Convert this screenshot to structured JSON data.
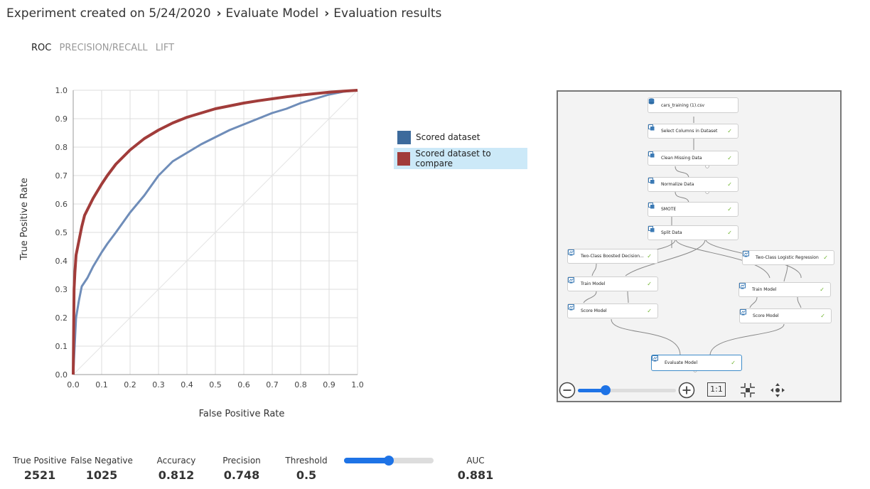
{
  "breadcrumb": {
    "items": [
      "Experiment created on 5/24/2020",
      "Evaluate Model",
      "Evaluation results"
    ],
    "separator": "›"
  },
  "tabs": [
    {
      "label": "ROC",
      "active": true
    },
    {
      "label": "PRECISION/RECALL",
      "active": false
    },
    {
      "label": "LIFT",
      "active": false
    }
  ],
  "chart_data": {
    "type": "line",
    "title": "",
    "xlabel": "False Positive Rate",
    "ylabel": "True Positive Rate",
    "xlim": [
      0,
      1
    ],
    "ylim": [
      0,
      1
    ],
    "xticks": [
      "0.0",
      "0.1",
      "0.2",
      "0.3",
      "0.4",
      "0.5",
      "0.6",
      "0.7",
      "0.8",
      "0.9",
      "1.0"
    ],
    "yticks": [
      "0.0",
      "0.1",
      "0.2",
      "0.3",
      "0.4",
      "0.5",
      "0.6",
      "0.7",
      "0.8",
      "0.9",
      "1.0"
    ],
    "grid": true,
    "diagonal_reference": true,
    "legend_position": "right",
    "series": [
      {
        "name": "Scored dataset",
        "color": "#6f8db9",
        "x": [
          0,
          0.005,
          0.01,
          0.02,
          0.03,
          0.05,
          0.07,
          0.1,
          0.12,
          0.15,
          0.2,
          0.25,
          0.3,
          0.35,
          0.4,
          0.45,
          0.5,
          0.55,
          0.6,
          0.65,
          0.7,
          0.75,
          0.8,
          0.85,
          0.9,
          0.95,
          1.0
        ],
        "y": [
          0,
          0.1,
          0.2,
          0.26,
          0.31,
          0.34,
          0.38,
          0.43,
          0.46,
          0.5,
          0.57,
          0.63,
          0.7,
          0.75,
          0.78,
          0.81,
          0.835,
          0.86,
          0.88,
          0.9,
          0.92,
          0.935,
          0.955,
          0.97,
          0.985,
          0.995,
          1.0
        ]
      },
      {
        "name": "Scored dataset to compare",
        "color": "#a13c3a",
        "x": [
          0,
          0.003,
          0.006,
          0.01,
          0.02,
          0.03,
          0.04,
          0.05,
          0.07,
          0.1,
          0.12,
          0.15,
          0.2,
          0.25,
          0.3,
          0.35,
          0.4,
          0.45,
          0.5,
          0.55,
          0.6,
          0.65,
          0.7,
          0.75,
          0.8,
          0.85,
          0.9,
          0.95,
          1.0
        ],
        "y": [
          0,
          0.3,
          0.36,
          0.42,
          0.47,
          0.52,
          0.56,
          0.58,
          0.62,
          0.67,
          0.7,
          0.74,
          0.79,
          0.83,
          0.86,
          0.885,
          0.905,
          0.92,
          0.935,
          0.945,
          0.955,
          0.963,
          0.97,
          0.977,
          0.983,
          0.988,
          0.993,
          0.997,
          1.0
        ]
      }
    ]
  },
  "legend": [
    {
      "label": "Scored dataset",
      "color": "#3c6a9c",
      "selected": false
    },
    {
      "label": "Scored dataset to compare",
      "color": "#a13c3a",
      "selected": true
    }
  ],
  "stats": {
    "true_positive": {
      "label": "True Positive",
      "value": "2521"
    },
    "false_negative": {
      "label": "False Negative",
      "value": "1025"
    },
    "accuracy": {
      "label": "Accuracy",
      "value": "0.812"
    },
    "precision": {
      "label": "Precision",
      "value": "0.748"
    },
    "threshold": {
      "label": "Threshold",
      "value": "0.5",
      "slider_fraction": 0.5
    },
    "auc": {
      "label": "AUC",
      "value": "0.881"
    }
  },
  "pipeline": {
    "modules": [
      {
        "id": "m1",
        "label": "cars_training (1).csv",
        "icon": "dataset-icon",
        "check": false
      },
      {
        "id": "m2",
        "label": "Select Columns in Dataset",
        "icon": "module-icon",
        "check": true
      },
      {
        "id": "m3",
        "label": "Clean Missing Data",
        "icon": "module-icon",
        "check": true
      },
      {
        "id": "m4",
        "label": "Normalize Data",
        "icon": "module-icon",
        "check": true
      },
      {
        "id": "m5",
        "label": "SMOTE",
        "icon": "module-icon",
        "check": true
      },
      {
        "id": "m6",
        "label": "Split Data",
        "icon": "module-icon",
        "check": true
      },
      {
        "id": "m7",
        "label": "Two-Class Boosted Decision...",
        "icon": "model-icon",
        "check": true
      },
      {
        "id": "m8",
        "label": "Two-Class Logistic Regression",
        "icon": "model-icon",
        "check": true
      },
      {
        "id": "m9",
        "label": "Train Model",
        "icon": "model-icon",
        "check": true
      },
      {
        "id": "m10",
        "label": "Train Model",
        "icon": "model-icon",
        "check": true
      },
      {
        "id": "m11",
        "label": "Score Model",
        "icon": "model-icon",
        "check": true
      },
      {
        "id": "m12",
        "label": "Score Model",
        "icon": "model-icon",
        "check": true
      },
      {
        "id": "m13",
        "label": "Evaluate Model",
        "icon": "model-icon",
        "check": true,
        "selected": true
      }
    ],
    "check_glyph": "✓",
    "zoom": {
      "fit_label": "1:1",
      "level_fraction": 0.28
    }
  }
}
